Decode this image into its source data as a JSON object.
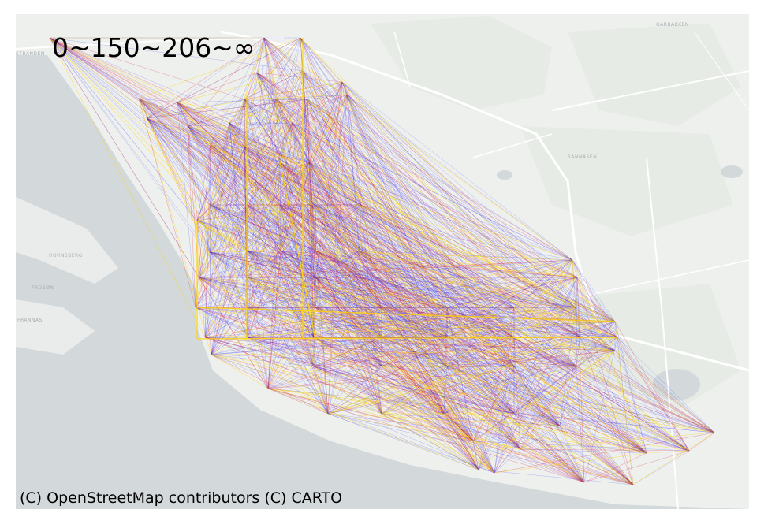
{
  "map": {
    "title": "0~150~206~∞",
    "attribution": "(C) OpenStreetMap contributors (C) CARTO",
    "basemap_style": "light-gray",
    "colors": {
      "land": "#eef0ee",
      "land_patch": "#e6ebe5",
      "water": "#d3d8da",
      "road": "#ffffff",
      "edge_low": "#1a1aff",
      "edge_mid": "#d8143c",
      "edge_high": "#ffd400"
    },
    "legend_bins": [
      "0",
      "150",
      "206",
      "∞"
    ],
    "place_labels": [
      "STRANDEN",
      "GARBAKKEN",
      "HORNSBERG",
      "FROSØN",
      "FRANNAS",
      "SANNASEN"
    ]
  }
}
